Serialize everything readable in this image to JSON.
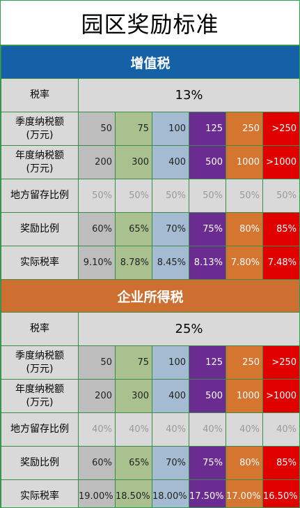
{
  "title": "园区奖励标准",
  "sections": [
    {
      "name": "增值税",
      "rate_label": "税率",
      "rate_value": "13%",
      "rows": [
        {
          "label": "季度纳税额（万元）",
          "label_l1": "季度纳税额",
          "label_l2": "(万元)",
          "values": [
            "50",
            "75",
            "100",
            "125",
            "250",
            ">250"
          ]
        },
        {
          "label": "年度纳税额（万元）",
          "label_l1": "年度纳税额",
          "label_l2": "(万元)",
          "values": [
            "200",
            "300",
            "400",
            "500",
            "1000",
            ">1000"
          ]
        },
        {
          "label": "地方留存比例",
          "values": [
            "50%",
            "50%",
            "50%",
            "50%",
            "50%",
            "50%"
          ]
        },
        {
          "label": "奖励比例",
          "values": [
            "60%",
            "65%",
            "70%",
            "75%",
            "80%",
            "85%"
          ]
        },
        {
          "label": "实际税率",
          "values": [
            "9.10%",
            "8.78%",
            "8.45%",
            "8.13%",
            "7.80%",
            "7.48%"
          ]
        }
      ]
    },
    {
      "name": "企业所得税",
      "rate_label": "税率",
      "rate_value": "25%",
      "rows": [
        {
          "label": "季度纳税额（万元）",
          "label_l1": "季度纳税额",
          "label_l2": "(万元)",
          "values": [
            "50",
            "75",
            "100",
            "125",
            "250",
            ">250"
          ]
        },
        {
          "label": "年度纳税额（万元）",
          "label_l1": "年度纳税额",
          "label_l2": "(万元)",
          "values": [
            "200",
            "300",
            "400",
            "500",
            "1000",
            ">1000"
          ]
        },
        {
          "label": "地方留存比例",
          "values": [
            "40%",
            "40%",
            "40%",
            "40%",
            "40%",
            "40%"
          ]
        },
        {
          "label": "奖励比例",
          "values": [
            "60%",
            "65%",
            "70%",
            "75%",
            "80%",
            "85%"
          ]
        },
        {
          "label": "实际税率",
          "values": [
            "19.00%",
            "18.50%",
            "18.00%",
            "17.50%",
            "17.00%",
            "16.50%"
          ]
        }
      ]
    }
  ],
  "colors": {
    "vat_header": "#1461a8",
    "cit_header": "#cd6f31",
    "tier_1": "#bdbdbd",
    "tier_2": "#a9c08f",
    "tier_3": "#a5bbd1",
    "tier_4": "#6a2c91",
    "tier_5": "#d6752f",
    "tier_6": "#e00000",
    "label_bg": "#d9d9d9",
    "border": "#2e9e4f"
  }
}
